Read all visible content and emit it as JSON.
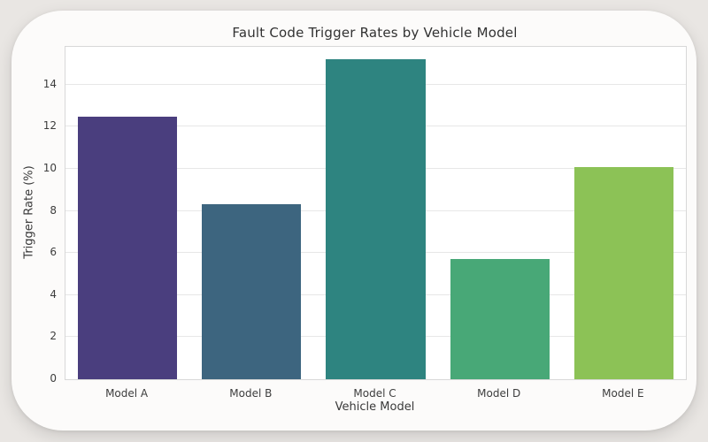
{
  "chart_data": {
    "type": "bar",
    "title": "Fault Code Trigger Rates by Vehicle Model",
    "xlabel": "Vehicle Model",
    "ylabel": "Trigger Rate (%)",
    "categories": [
      "Model A",
      "Model B",
      "Model C",
      "Model D",
      "Model E"
    ],
    "values": [
      12.5,
      8.3,
      15.2,
      5.7,
      10.1
    ],
    "bar_colors": [
      "#4a3e7e",
      "#3d657f",
      "#2e8480",
      "#48a877",
      "#8cc256"
    ],
    "ylim": [
      0,
      15.8
    ],
    "yticks": [
      0,
      2,
      4,
      6,
      8,
      10,
      12,
      14
    ],
    "grid": "horizontal",
    "legend": "none"
  },
  "colors": {
    "page_background": "#e9e6e3",
    "card_background": "#fcfbfa",
    "plot_background": "#ffffff",
    "gridline": "#e7e7e7",
    "spine": "#d8d8d8",
    "text": "#3a3a3a"
  }
}
